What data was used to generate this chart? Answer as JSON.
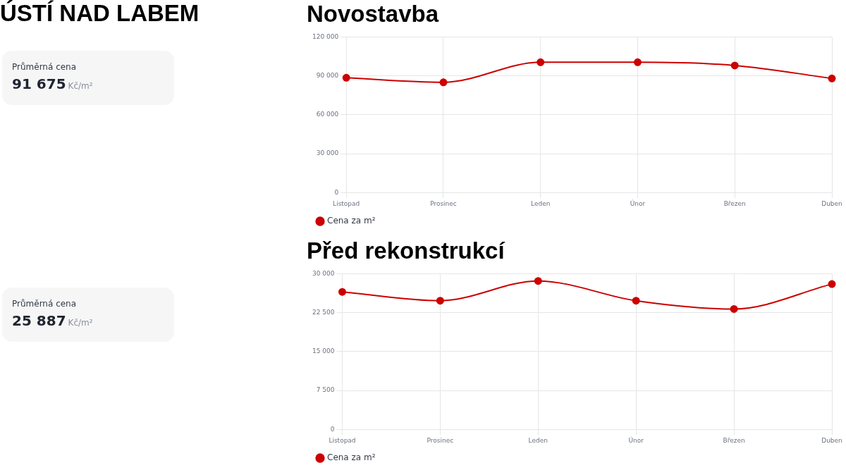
{
  "chart_data": [
    {
      "type": "other",
      "title": "ÚSTÍ NAD LABEM"
    },
    {
      "type": "other",
      "title": "Průměrná cena",
      "annotations": [
        "91 675",
        "Kč/m²"
      ]
    },
    {
      "type": "line",
      "title": "Novostavba",
      "categories": [
        "Listopad",
        "Prosinec",
        "Leden",
        "Únor",
        "Březen",
        "Duben"
      ],
      "series": [
        {
          "name": "Cena za m²",
          "color": "#cc0000",
          "values": [
            88500,
            85000,
            100500,
            100500,
            98000,
            88000
          ]
        }
      ],
      "ylim": [
        0,
        120000
      ],
      "yticks": [
        {
          "value": 0,
          "label": "0"
        },
        {
          "value": 30000,
          "label": "30 000"
        },
        {
          "value": 60000,
          "label": "60 000"
        },
        {
          "value": 90000,
          "label": "90 000"
        },
        {
          "value": 120000,
          "label": "120 000"
        }
      ],
      "grid": true,
      "legend": "bottom left",
      "marker": "circle",
      "line_style": "solid"
    },
    {
      "type": "other",
      "title": "Průměrná cena",
      "annotations": [
        "25 887",
        "Kč/m²"
      ]
    },
    {
      "type": "line",
      "title": "Před rekonstrukcí",
      "categories": [
        "Listopad",
        "Prosinec",
        "Leden",
        "Únor",
        "Březen",
        "Duben"
      ],
      "series": [
        {
          "name": "Cena za m²",
          "color": "#cc0000",
          "values": [
            26500,
            24800,
            28600,
            24800,
            23200,
            28000
          ]
        }
      ],
      "ylim": [
        0,
        30000
      ],
      "yticks": [
        {
          "value": 0,
          "label": "0"
        },
        {
          "value": 7500,
          "label": "7 500"
        },
        {
          "value": 15000,
          "label": "15 000"
        },
        {
          "value": 22500,
          "label": "22 500"
        },
        {
          "value": 30000,
          "label": "30 000"
        }
      ],
      "grid": true,
      "legend": "bottom left",
      "marker": "circle",
      "line_style": "solid"
    }
  ]
}
